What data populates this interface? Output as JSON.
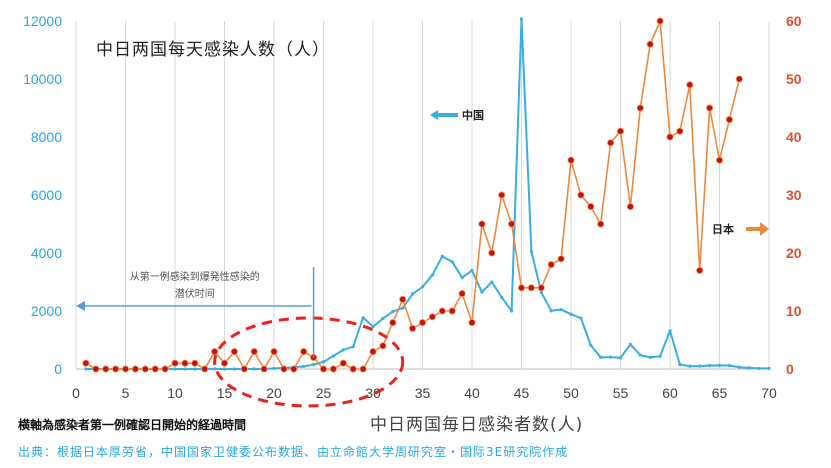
{
  "chart_data": {
    "type": "line",
    "title": "中日两国每天感染人数（人）",
    "xlabel": "中日两国毎日感染者数(人)",
    "xaxis_note": "横軸為感染者第一例確認日開始的経過時間",
    "source": "出典：根据日本厚劳省，中国国家卫健委公布数据、由立命館大学周研究室・国际3E研究院作成",
    "xlim": [
      0,
      70
    ],
    "ylim_left": [
      0,
      12000
    ],
    "ylim_right": [
      0,
      60
    ],
    "x_ticks": [
      "0",
      "5",
      "10",
      "15",
      "20",
      "25",
      "30",
      "35",
      "40",
      "45",
      "50",
      "55",
      "60",
      "65",
      "70"
    ],
    "y_ticks_left": [
      "0",
      "2000",
      "4000",
      "6000",
      "8000",
      "10000",
      "12000"
    ],
    "y_ticks_right": [
      "0",
      "10",
      "20",
      "30",
      "40",
      "50",
      "60"
    ],
    "series": [
      {
        "name": "中国",
        "axis": "left",
        "color": "#3aaee0",
        "x": [
          1,
          2,
          3,
          4,
          5,
          6,
          7,
          8,
          9,
          10,
          11,
          12,
          13,
          14,
          15,
          16,
          17,
          18,
          19,
          20,
          21,
          22,
          23,
          24,
          25,
          26,
          27,
          28,
          29,
          30,
          31,
          32,
          33,
          34,
          35,
          36,
          37,
          38,
          39,
          40,
          41,
          42,
          43,
          44,
          45,
          46,
          47,
          48,
          49,
          50,
          51,
          52,
          53,
          54,
          55,
          56,
          57,
          58,
          59,
          60,
          61,
          62,
          63,
          64,
          65,
          66,
          67,
          68,
          69,
          70
        ],
        "values": [
          0,
          0,
          0,
          0,
          0,
          0,
          0,
          0,
          0,
          0,
          0,
          0,
          0,
          0,
          0,
          0,
          0,
          0,
          0,
          20,
          40,
          60,
          90,
          150,
          250,
          450,
          660,
          770,
          1770,
          1460,
          1740,
          1980,
          2100,
          2590,
          2830,
          3240,
          3890,
          3700,
          3150,
          3400,
          2650,
          3000,
          2470,
          2000,
          15150,
          4050,
          2640,
          2010,
          2050,
          1890,
          1750,
          820,
          400,
          410,
          390,
          850,
          480,
          400,
          440,
          1320,
          150,
          100,
          100,
          120,
          125,
          120,
          60,
          40,
          20,
          20
        ],
        "clip_top": true
      },
      {
        "name": "日本",
        "axis": "right",
        "color": "#e98a3f",
        "marker_color": "#c0121a",
        "x": [
          1,
          2,
          3,
          4,
          5,
          6,
          7,
          8,
          9,
          10,
          11,
          12,
          13,
          14,
          15,
          16,
          17,
          18,
          19,
          20,
          21,
          22,
          23,
          24,
          25,
          26,
          27,
          28,
          29,
          30,
          31,
          32,
          33,
          34,
          35,
          36,
          37,
          38,
          39,
          40,
          41,
          42,
          43,
          44,
          45,
          46,
          47,
          48,
          49,
          50,
          51,
          52,
          53,
          54,
          55,
          56,
          57,
          58,
          59,
          60,
          61,
          62,
          63,
          64,
          65,
          66,
          67
        ],
        "values": [
          1,
          0,
          0,
          0,
          0,
          0,
          0,
          0,
          0,
          1,
          1,
          1,
          0,
          3,
          1,
          3,
          0,
          3,
          0,
          3,
          0,
          0,
          3,
          2,
          0,
          0,
          1,
          0,
          0,
          3,
          4,
          8,
          12,
          7,
          8,
          9,
          10,
          10,
          13,
          8,
          25,
          20,
          30,
          25,
          14,
          14,
          14,
          18,
          19,
          36,
          30,
          28,
          25,
          39,
          41,
          28,
          45,
          56,
          60,
          40,
          41,
          49,
          17,
          45,
          36,
          43,
          50
        ]
      }
    ],
    "legend": {
      "china_label": "中国",
      "japan_label": "日本"
    },
    "annotation": {
      "line1": "从第一例感染到爆発性感染的",
      "line2": "潜伏时间",
      "range_start_day": 0,
      "range_end_day": 24
    },
    "highlight_ellipse_days": [
      14,
      33
    ],
    "colors": {
      "china": "#3aaee0",
      "japan_line": "#e98a3f",
      "japan_marker": "#c0121a",
      "left_axis": "#29a8e0",
      "right_axis": "#e0502a",
      "annotation": "#5b9bd5",
      "highlight": "#e8231e",
      "grid": "#d9d9d9"
    }
  }
}
